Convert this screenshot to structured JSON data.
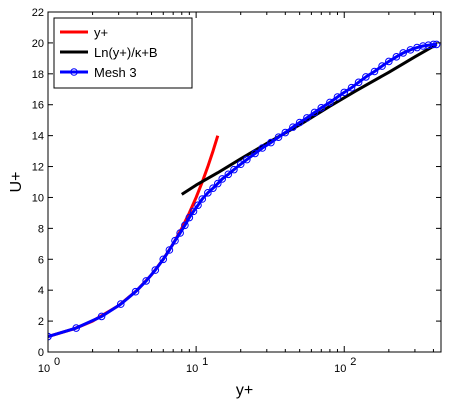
{
  "chart_data": {
    "type": "line",
    "xscale": "log",
    "xlim": [
      1,
      450
    ],
    "ylim": [
      0,
      22
    ],
    "xlabel": "y+",
    "ylabel": "U+",
    "grid": false,
    "legend_position": "top-left",
    "x_ticks": [
      {
        "value": 1,
        "base": "10",
        "exp": "0"
      },
      {
        "value": 10,
        "base": "10",
        "exp": "1"
      },
      {
        "value": 100,
        "base": "10",
        "exp": "2"
      }
    ],
    "y_ticks": [
      0,
      2,
      4,
      6,
      8,
      10,
      12,
      14,
      16,
      18,
      20,
      22
    ],
    "series": [
      {
        "name": "y+",
        "color": "#ff0000",
        "style": "line",
        "x": [
          1,
          1.5,
          2,
          3,
          4,
          5,
          6,
          7,
          8,
          9,
          10,
          11,
          12,
          13,
          14
        ],
        "y": [
          1,
          1.5,
          2,
          3,
          4,
          5,
          6,
          7,
          8,
          9,
          10,
          11,
          12,
          13,
          14
        ]
      },
      {
        "name": "Ln(y+)/κ+B",
        "color": "#000000",
        "style": "line",
        "x": [
          8,
          10,
          14,
          20,
          30,
          50,
          80,
          120,
          200,
          300,
          420
        ],
        "y": [
          10.2,
          10.8,
          11.6,
          12.5,
          13.5,
          14.7,
          15.9,
          16.9,
          18.1,
          19.1,
          19.9
        ]
      },
      {
        "name": "Mesh 3",
        "color": "#0000ff",
        "style": "line-circle",
        "x": [
          1,
          1.55,
          2.3,
          3.1,
          3.9,
          4.6,
          5.3,
          6.0,
          6.6,
          7.2,
          7.8,
          8.4,
          9.0,
          9.6,
          10.3,
          11,
          12,
          13,
          14,
          15,
          16.5,
          18,
          20,
          22,
          25,
          28,
          32,
          36,
          40,
          45,
          50,
          56,
          63,
          70,
          80,
          90,
          100,
          112,
          125,
          140,
          160,
          180,
          200,
          225,
          250,
          280,
          310,
          340,
          370,
          400,
          420
        ],
        "y": [
          1.0,
          1.55,
          2.3,
          3.1,
          3.9,
          4.6,
          5.3,
          6.0,
          6.6,
          7.2,
          7.7,
          8.2,
          8.7,
          9.1,
          9.5,
          9.9,
          10.3,
          10.6,
          10.9,
          11.2,
          11.5,
          11.8,
          12.15,
          12.45,
          12.85,
          13.2,
          13.55,
          13.9,
          14.2,
          14.55,
          14.85,
          15.15,
          15.5,
          15.8,
          16.15,
          16.5,
          16.8,
          17.1,
          17.45,
          17.8,
          18.15,
          18.5,
          18.8,
          19.1,
          19.35,
          19.55,
          19.7,
          19.8,
          19.85,
          19.9,
          19.9
        ]
      }
    ]
  }
}
